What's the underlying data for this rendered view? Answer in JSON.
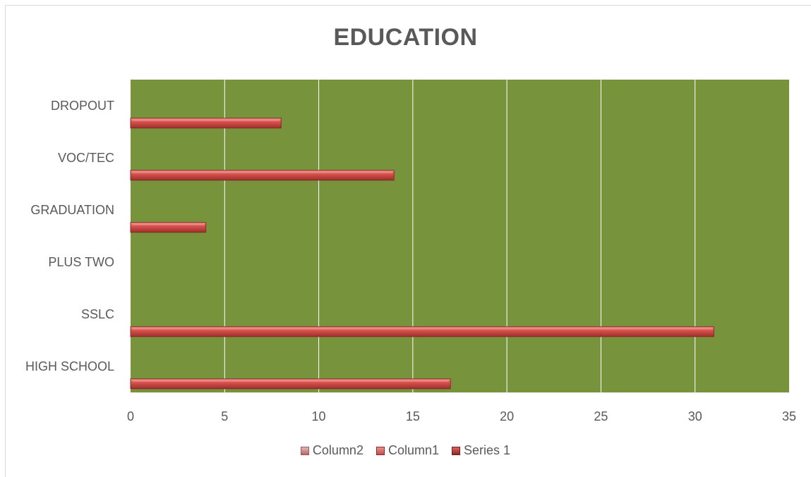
{
  "chart_data": {
    "type": "bar",
    "orientation": "horizontal",
    "title": "EDUCATION",
    "categories": [
      "HIGH SCHOOL",
      "SSLC",
      "PLUS TWO",
      "GRADUATION",
      "VOC/TEC",
      "DROPOUT"
    ],
    "series": [
      {
        "name": "Series 1",
        "values": [
          17,
          31,
          0,
          4,
          14,
          8
        ],
        "color": "#c0504d"
      },
      {
        "name": "Column1",
        "values": [
          0,
          0,
          0,
          0,
          0,
          0
        ],
        "color": "#c0504d"
      },
      {
        "name": "Column2",
        "values": [
          0,
          0,
          0,
          0,
          0,
          0
        ],
        "color": "#d99694"
      }
    ],
    "xlim": [
      0,
      35
    ],
    "xticks": [
      0,
      5,
      10,
      15,
      20,
      25,
      30,
      35
    ],
    "plot_background": "#77933c",
    "grid": true,
    "legend": {
      "position": "bottom",
      "entries": [
        "Column2",
        "Column1",
        "Series 1"
      ]
    }
  },
  "colors": {
    "bar": "#c0504d",
    "bar_dark": "#8b2a27",
    "bar_light": "#f08e8a",
    "gridline": "#ffffff",
    "text": "#595959"
  }
}
